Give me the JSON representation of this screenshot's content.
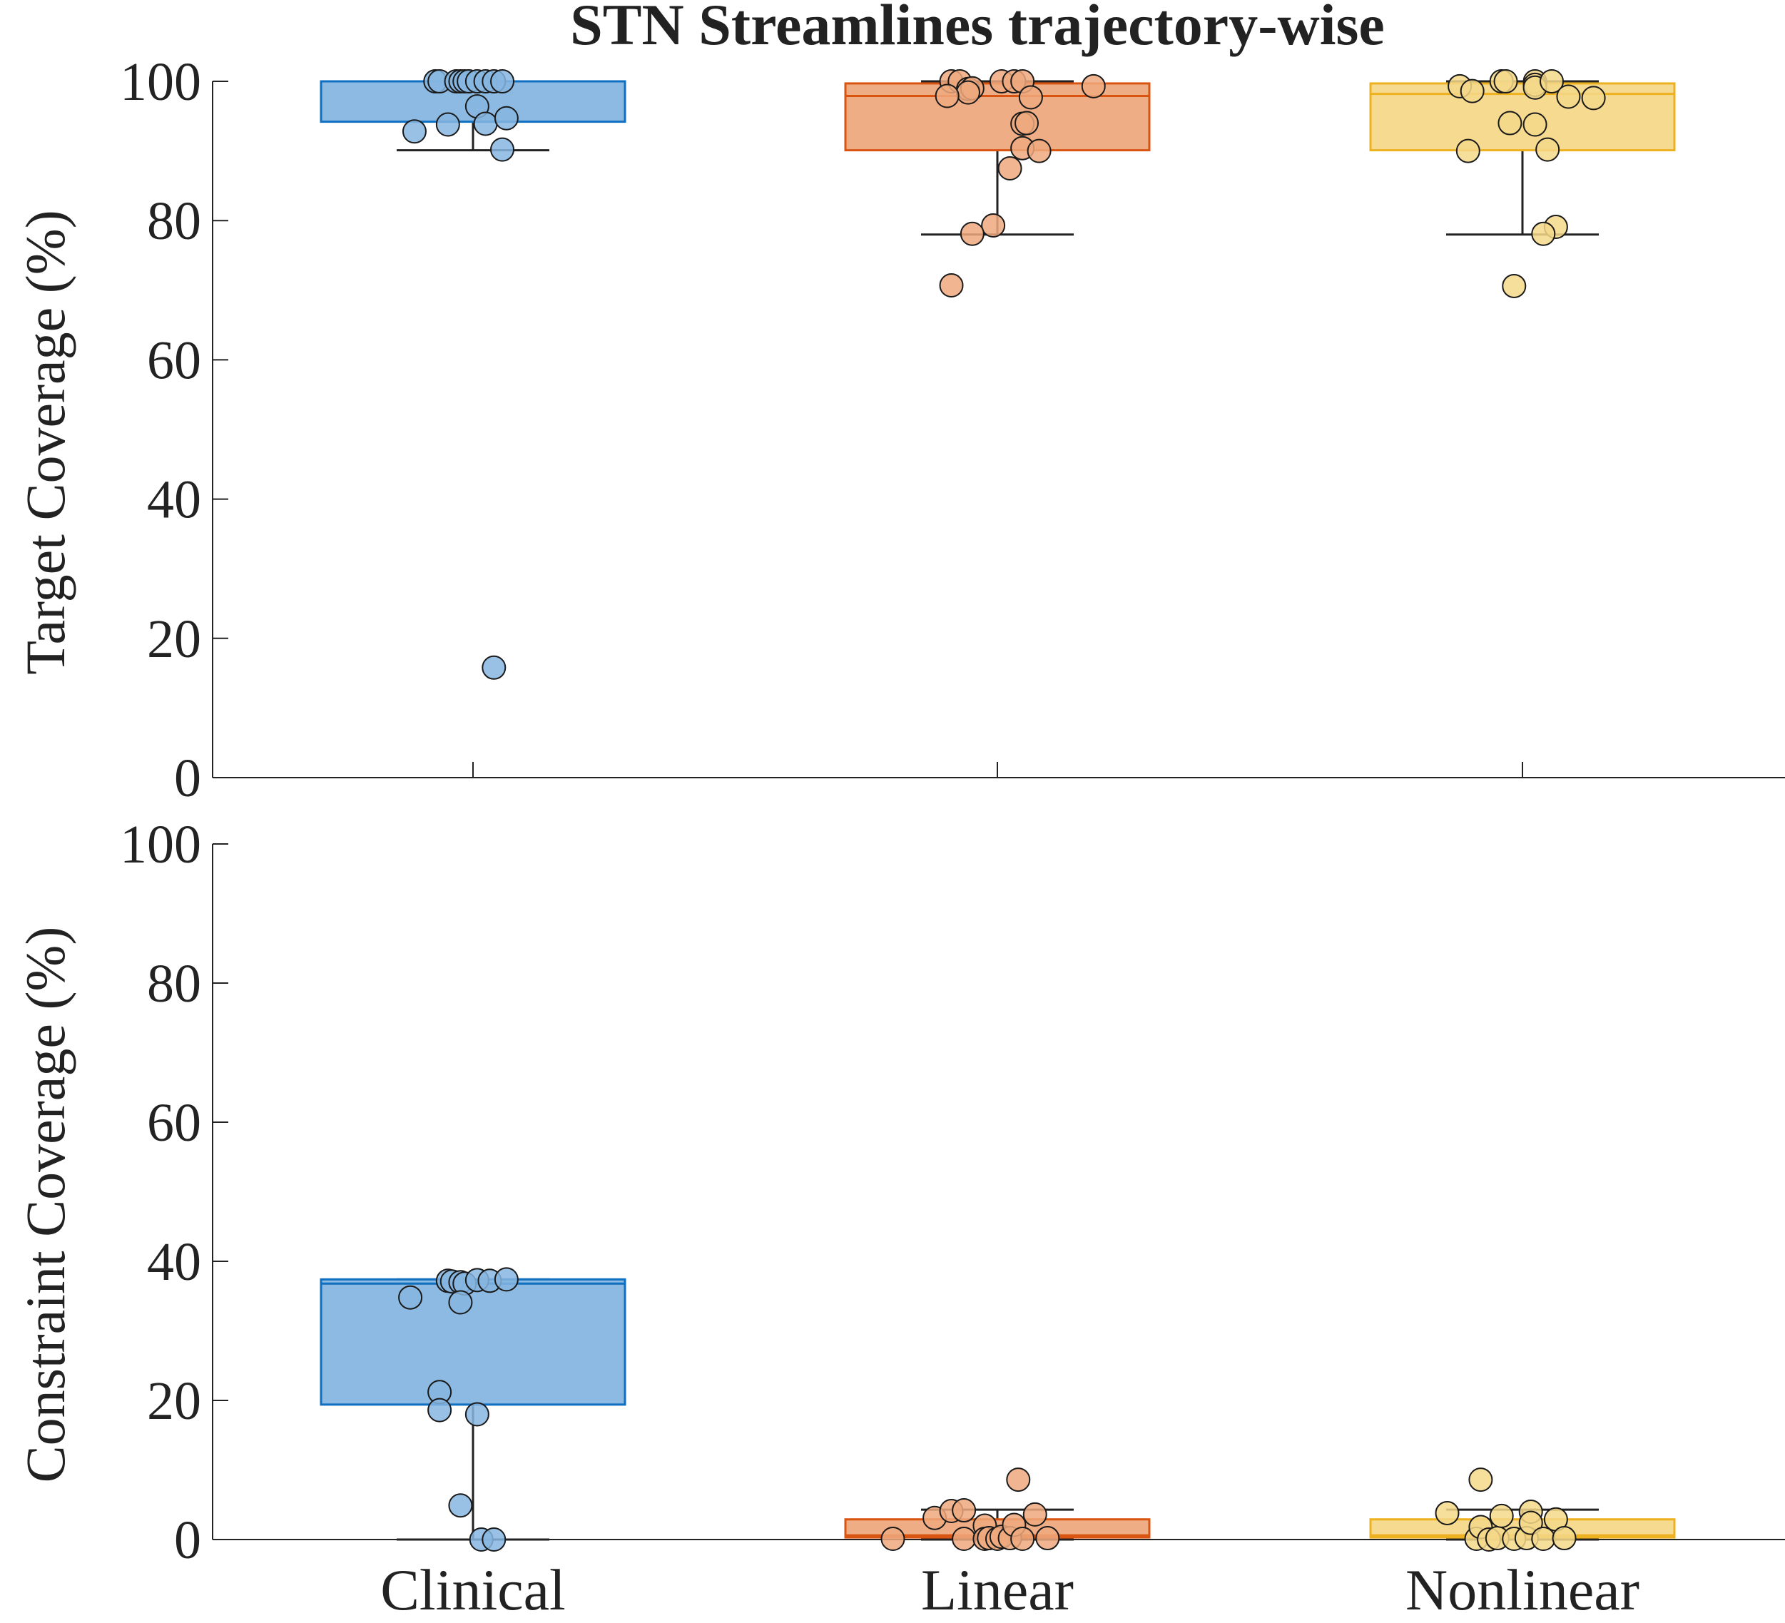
{
  "chart_data": {
    "type": "boxplot",
    "title": "STN Streamlines trajectory-wise",
    "categories": [
      "Clinical",
      "Linear",
      "Nonlinear"
    ],
    "colors": {
      "Clinical": {
        "fill": "#86b6e0",
        "edge": "#0f6fc0"
      },
      "Linear": {
        "fill": "#eea97e",
        "edge": "#d95410"
      },
      "Nonlinear": {
        "fill": "#f5d88a",
        "edge": "#edb120"
      }
    },
    "panels": [
      {
        "ylabel": "Target Coverage (%)",
        "ylim": [
          0,
          100
        ],
        "yticks": [
          0,
          20,
          40,
          60,
          80,
          100
        ],
        "boxes": [
          {
            "category": "Clinical",
            "q1": 94.2,
            "median": 100,
            "q3": 100,
            "whisker_low": 90.1,
            "whisker_high": 100
          },
          {
            "category": "Linear",
            "q1": 90.1,
            "median": 97.9,
            "q3": 99.7,
            "whisker_low": 78,
            "whisker_high": 100
          },
          {
            "category": "Nonlinear",
            "q1": 90.1,
            "median": 98.2,
            "q3": 99.7,
            "whisker_low": 78,
            "whisker_high": 100
          }
        ],
        "points": [
          {
            "category": "Clinical",
            "values": [
              100,
              100,
              100,
              100,
              100,
              100,
              100,
              100,
              100,
              100,
              92.8,
              93.8,
              96.4,
              93.9,
              94.7,
              90.2,
              15.8
            ],
            "offsets": [
              -0.09,
              -0.08,
              -0.04,
              -0.03,
              -0.02,
              -0.01,
              0.01,
              0.03,
              0.05,
              0.07,
              -0.14,
              -0.06,
              0.01,
              0.03,
              0.08,
              0.07,
              0.05
            ]
          },
          {
            "category": "Linear",
            "values": [
              100,
              100,
              98.9,
              99,
              98.4,
              97.9,
              100,
              100,
              100,
              99.3,
              97.7,
              93.9,
              94,
              90.4,
              90,
              87.5,
              79.3,
              78.1,
              70.7
            ],
            "offsets": [
              -0.11,
              -0.09,
              -0.07,
              -0.06,
              -0.07,
              -0.12,
              0.01,
              0.04,
              0.06,
              0.23,
              0.08,
              0.06,
              0.07,
              0.06,
              0.1,
              0.03,
              -0.01,
              -0.06,
              -0.11
            ]
          },
          {
            "category": "Nonlinear",
            "values": [
              99.3,
              98.6,
              100,
              100,
              100,
              99.5,
              99.1,
              100,
              97.8,
              97.6,
              94,
              93.8,
              90,
              90.2,
              79.1,
              78.1,
              70.6
            ],
            "offsets": [
              -0.15,
              -0.12,
              -0.05,
              -0.04,
              0.03,
              0.03,
              0.03,
              0.07,
              0.11,
              0.17,
              -0.03,
              0.03,
              -0.13,
              0.06,
              0.08,
              0.05,
              -0.02
            ]
          }
        ]
      },
      {
        "ylabel": "Constraint Coverage (%)",
        "ylim": [
          0,
          100
        ],
        "yticks": [
          0,
          20,
          40,
          60,
          80,
          100
        ],
        "boxes": [
          {
            "category": "Clinical",
            "q1": 19.4,
            "median": 36.8,
            "q3": 37.4,
            "whisker_low": 0,
            "whisker_high": 37.4
          },
          {
            "category": "Linear",
            "q1": 0.3,
            "median": 0.6,
            "q3": 2.9,
            "whisker_low": 0,
            "whisker_high": 4.3
          },
          {
            "category": "Nonlinear",
            "q1": 0.3,
            "median": 0.6,
            "q3": 2.9,
            "whisker_low": 0,
            "whisker_high": 4.3
          }
        ],
        "points": [
          {
            "category": "Clinical",
            "values": [
              37.2,
              37.1,
              37,
              36.8,
              37.3,
              37.2,
              37.4,
              34.8,
              34.1,
              21.2,
              18.6,
              18,
              4.9,
              0,
              0
            ],
            "offsets": [
              -0.06,
              -0.05,
              -0.03,
              -0.02,
              0.01,
              0.04,
              0.08,
              -0.15,
              -0.03,
              -0.08,
              -0.08,
              0.01,
              -0.03,
              0.02,
              0.05
            ]
          },
          {
            "category": "Linear",
            "values": [
              0.1,
              3.1,
              4.1,
              4.2,
              0.1,
              2,
              0.1,
              0.2,
              0.1,
              0.4,
              0.2,
              2.1,
              0.1,
              3.6,
              8.6,
              0.2
            ],
            "offsets": [
              -0.25,
              -0.15,
              -0.11,
              -0.08,
              -0.08,
              -0.03,
              -0.03,
              -0.02,
              0,
              0.01,
              0.03,
              0.04,
              0.06,
              0.09,
              0.05,
              0.12
            ]
          },
          {
            "category": "Nonlinear",
            "values": [
              3.8,
              0.1,
              1.8,
              0,
              0.2,
              8.6,
              3.4,
              0.1,
              0.2,
              4,
              2.4,
              0.1,
              2.9,
              0.2
            ],
            "offsets": [
              -0.18,
              -0.11,
              -0.1,
              -0.08,
              -0.06,
              -0.1,
              -0.05,
              -0.02,
              0.01,
              0.02,
              0.02,
              0.05,
              0.08,
              0.1
            ]
          }
        ]
      }
    ]
  }
}
